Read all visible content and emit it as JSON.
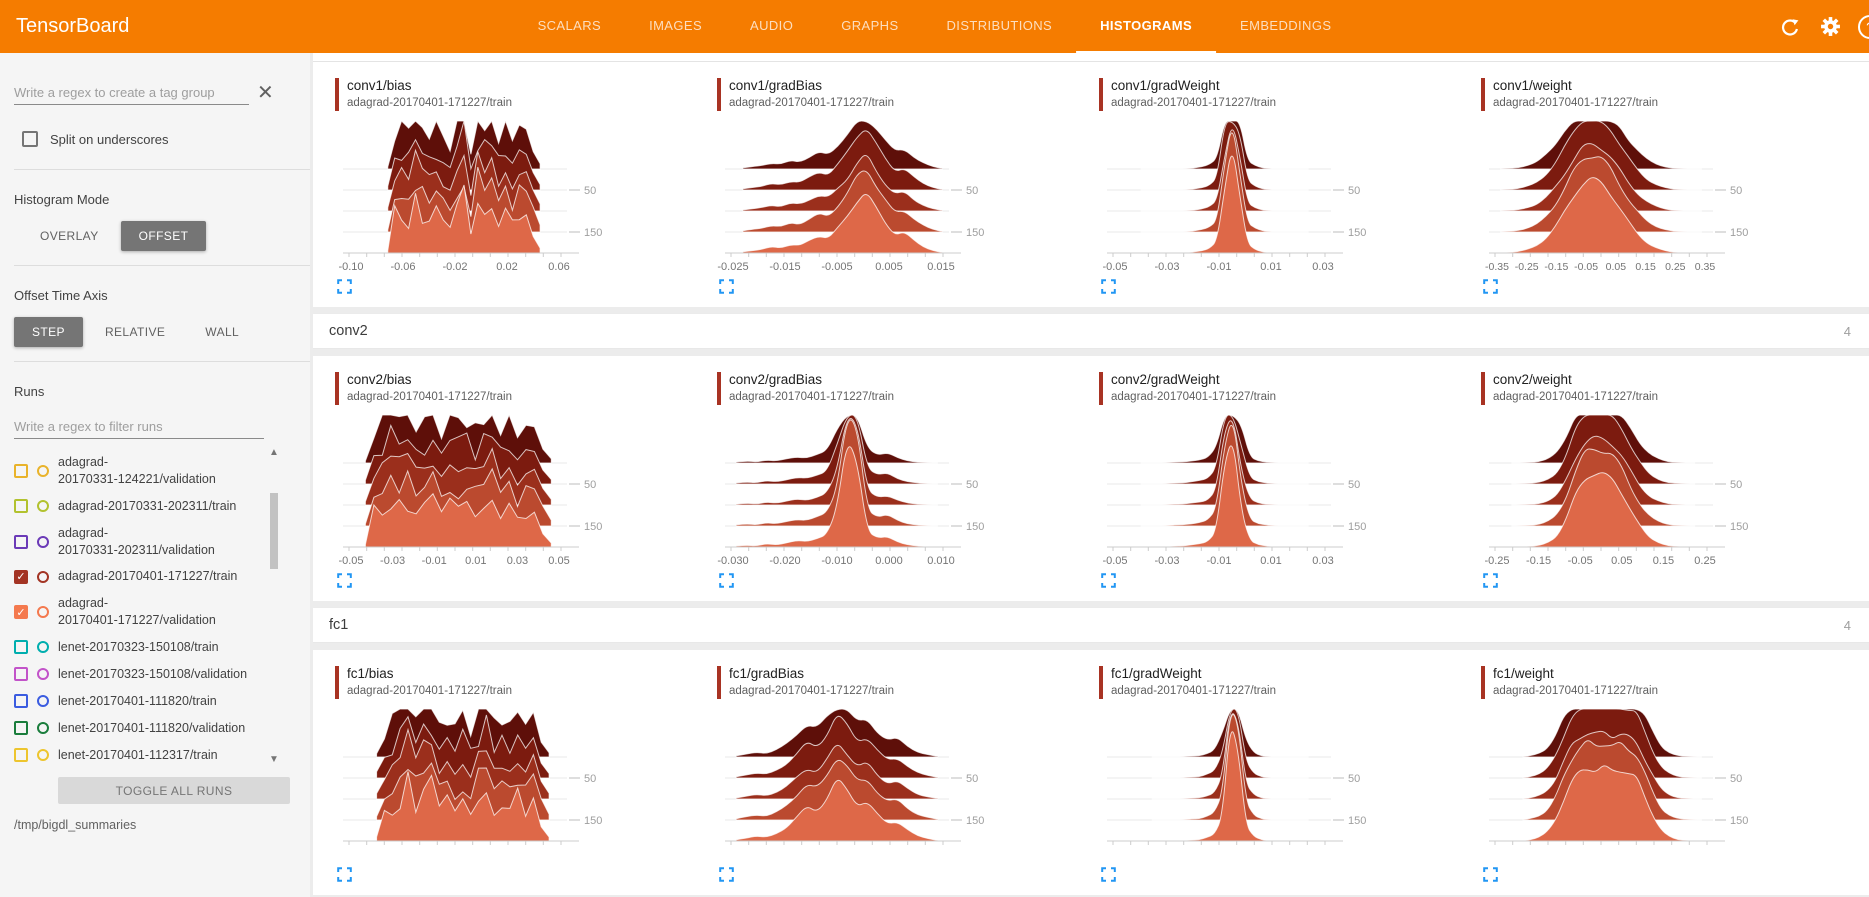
{
  "header": {
    "title": "TensorBoard",
    "tabs": [
      {
        "label": "SCALARS",
        "active": false
      },
      {
        "label": "IMAGES",
        "active": false
      },
      {
        "label": "AUDIO",
        "active": false
      },
      {
        "label": "GRAPHS",
        "active": false
      },
      {
        "label": "DISTRIBUTIONS",
        "active": false
      },
      {
        "label": "HISTOGRAMS",
        "active": true
      },
      {
        "label": "EMBEDDINGS",
        "active": false
      }
    ],
    "accent_color": "#f57c00",
    "icons": [
      "refresh-icon",
      "settings-icon",
      "help-icon"
    ]
  },
  "sidebar": {
    "tag_filter_placeholder": "Write a regex to create a tag group",
    "clear_icon": "x-icon",
    "split_label": "Split on underscores",
    "split_checked": false,
    "histogram_mode": {
      "label": "Histogram Mode",
      "options": [
        "OVERLAY",
        "OFFSET"
      ],
      "selected": "OFFSET"
    },
    "offset_time_axis": {
      "label": "Offset Time Axis",
      "options": [
        "STEP",
        "RELATIVE",
        "WALL"
      ],
      "selected": "STEP"
    },
    "runs": {
      "label": "Runs",
      "filter_placeholder": "Write a regex to filter runs",
      "items": [
        {
          "line1": "adagrad-",
          "line2": "20170331-124221/validation",
          "color": "#e9b32b",
          "checked": false
        },
        {
          "line1": "adagrad-20170331-202311/train",
          "line2": "",
          "color": "#b2c22f",
          "checked": false
        },
        {
          "line1": "adagrad-",
          "line2": "20170331-202311/validation",
          "color": "#6b3ab7",
          "checked": false
        },
        {
          "line1": "adagrad-20170401-171227/train",
          "line2": "",
          "color": "#a33424",
          "checked": true
        },
        {
          "line1": "adagrad-",
          "line2": "20170401-171227/validation",
          "color": "#f4794e",
          "checked": true
        },
        {
          "line1": "lenet-20170323-150108/train",
          "line2": "",
          "color": "#00aeae",
          "checked": false
        },
        {
          "line1": "lenet-20170323-150108/validation",
          "line2": "",
          "color": "#c253c9",
          "checked": false
        },
        {
          "line1": "lenet-20170401-111820/train",
          "line2": "",
          "color": "#3b5ce0",
          "checked": false
        },
        {
          "line1": "lenet-20170401-111820/validation",
          "line2": "",
          "color": "#1a7d3c",
          "checked": false
        },
        {
          "line1": "lenet-20170401-112317/train",
          "line2": "",
          "color": "#edc52e",
          "checked": false
        }
      ],
      "toggle_button": "TOGGLE ALL RUNS",
      "log_dir": "/tmp/bigdl_summaries"
    }
  },
  "main": {
    "groups": [
      {
        "name": "",
        "count": "",
        "show_header": false,
        "charts": [
          0,
          1,
          2,
          3
        ]
      },
      {
        "name": "conv2",
        "count": "4",
        "show_header": true,
        "charts": [
          4,
          5,
          6,
          7
        ]
      },
      {
        "name": "fc1",
        "count": "4",
        "show_header": true,
        "charts": [
          8,
          9,
          10,
          11
        ]
      }
    ]
  },
  "histogram_style": {
    "layer_colors": [
      "#5e0f09",
      "#7c1b0f",
      "#9b2f1c",
      "#bb4a2f",
      "#de6848"
    ],
    "layer_stroke": "rgba(255,255,255,0.75)",
    "grid_color": "#e9e9e9",
    "axis_color": "#cccccc",
    "xtick_label_color": "#757575",
    "ytick_label_color": "#9e9e9e",
    "accent_bar_color": "#a83323",
    "expand_icon_color": "#2196f3"
  },
  "chart_data": [
    {
      "type": "area",
      "group": "conv1",
      "title": "conv1/bias",
      "run": "adagrad-20170401-171227/train",
      "xticks": [
        "-0.10",
        "-0.06",
        "-0.02",
        "0.02",
        "0.06"
      ],
      "yticks": [
        "50",
        "150"
      ],
      "shape": "noisy",
      "span": [
        0.2,
        0.88
      ],
      "amp": 62,
      "profile": [
        0.05,
        0.62,
        0.7,
        0.55,
        0.78,
        0.62,
        0.48,
        0.72,
        0.55,
        0.4,
        0.78,
        1.0,
        0.3,
        0.85,
        0.68,
        0.9,
        0.58,
        0.8,
        0.5,
        0.7,
        0.55,
        0.35,
        0.1
      ]
    },
    {
      "type": "area",
      "group": "conv1",
      "title": "conv1/gradBias",
      "run": "adagrad-20170401-171227/train",
      "xticks": [
        "-0.025",
        "-0.015",
        "-0.005",
        "0.005",
        "0.015"
      ],
      "yticks": [
        "50",
        "150"
      ],
      "shape": "hills",
      "span": [
        0.08,
        0.97
      ],
      "amp": 64,
      "profile": [
        0.02,
        0.04,
        0.06,
        0.1,
        0.08,
        0.14,
        0.12,
        0.2,
        0.28,
        0.24,
        0.4,
        0.58,
        0.85,
        1.0,
        0.72,
        0.48,
        0.3,
        0.34,
        0.2,
        0.1,
        0.04,
        0.01
      ]
    },
    {
      "type": "area",
      "group": "conv1",
      "title": "conv1/gradWeight",
      "run": "adagrad-20170401-171227/train",
      "xticks": [
        "-0.05",
        "-0.03",
        "-0.01",
        "0.01",
        "0.03"
      ],
      "yticks": [
        "50",
        "150"
      ],
      "shape": "spike",
      "span": [
        0.15,
        0.9
      ],
      "amp": 118,
      "profile": [
        0,
        0,
        0,
        0,
        0,
        0,
        0,
        0.01,
        0.02,
        0.04,
        0.1,
        0.55,
        1.0,
        0.5,
        0.08,
        0.03,
        0.01,
        0,
        0,
        0,
        0,
        0,
        0
      ]
    },
    {
      "type": "area",
      "group": "conv1",
      "title": "conv1/weight",
      "run": "adagrad-20170401-171227/train",
      "xticks": [
        "-0.35",
        "-0.25",
        "-0.15",
        "-0.05",
        "0.05",
        "0.15",
        "0.25",
        "0.35"
      ],
      "yticks": [
        "50",
        "150"
      ],
      "shape": "bell",
      "span": [
        0.05,
        0.95
      ],
      "amp": 76,
      "profile": [
        0,
        0.01,
        0.02,
        0.05,
        0.1,
        0.2,
        0.35,
        0.55,
        0.78,
        0.95,
        1.0,
        0.96,
        0.82,
        0.62,
        0.42,
        0.26,
        0.14,
        0.07,
        0.03,
        0.01,
        0,
        0,
        0
      ]
    },
    {
      "type": "area",
      "group": "conv2",
      "title": "conv2/bias",
      "run": "adagrad-20170401-171227/train",
      "xticks": [
        "-0.05",
        "-0.03",
        "-0.01",
        "0.01",
        "0.03",
        "0.05"
      ],
      "yticks": [
        "50",
        "150"
      ],
      "shape": "noisy",
      "span": [
        0.1,
        0.93
      ],
      "amp": 62,
      "profile": [
        0.05,
        0.55,
        0.68,
        0.85,
        0.62,
        0.75,
        0.5,
        0.68,
        0.88,
        0.55,
        0.78,
        0.6,
        0.72,
        0.52,
        0.68,
        0.95,
        0.62,
        0.78,
        0.45,
        0.6,
        0.5,
        0.28,
        0.08
      ]
    },
    {
      "type": "area",
      "group": "conv2",
      "title": "conv2/gradBias",
      "run": "adagrad-20170401-171227/train",
      "xticks": [
        "-0.030",
        "-0.020",
        "-0.010",
        "0.000",
        "0.010"
      ],
      "yticks": [
        "50",
        "150"
      ],
      "shape": "spike",
      "span": [
        0.05,
        0.95
      ],
      "amp": 110,
      "profile": [
        0.01,
        0.02,
        0.01,
        0.03,
        0.02,
        0.04,
        0.06,
        0.05,
        0.08,
        0.12,
        0.35,
        1.0,
        0.85,
        0.15,
        0.08,
        0.1,
        0.05,
        0.02,
        0.01,
        0,
        0
      ]
    },
    {
      "type": "area",
      "group": "conv2",
      "title": "conv2/gradWeight",
      "run": "adagrad-20170401-171227/train",
      "xticks": [
        "-0.05",
        "-0.03",
        "-0.01",
        "0.01",
        "0.03"
      ],
      "yticks": [
        "50",
        "150"
      ],
      "shape": "spike",
      "span": [
        0.15,
        0.9
      ],
      "amp": 112,
      "profile": [
        0,
        0,
        0,
        0,
        0.01,
        0.01,
        0.02,
        0.03,
        0.05,
        0.15,
        0.75,
        1.0,
        0.35,
        0.06,
        0.02,
        0.01,
        0,
        0,
        0,
        0,
        0
      ]
    },
    {
      "type": "area",
      "group": "conv2",
      "title": "conv2/weight",
      "run": "adagrad-20170401-171227/train",
      "xticks": [
        "-0.25",
        "-0.15",
        "-0.05",
        "0.05",
        "0.15",
        "0.25"
      ],
      "yticks": [
        "50",
        "150"
      ],
      "shape": "bell",
      "span": [
        0.1,
        0.92
      ],
      "amp": 76,
      "profile": [
        0,
        0,
        0.01,
        0.02,
        0.06,
        0.15,
        0.38,
        0.72,
        0.95,
        1.0,
        0.98,
        0.92,
        0.75,
        0.5,
        0.28,
        0.13,
        0.06,
        0.02,
        0.01,
        0,
        0
      ]
    },
    {
      "type": "area",
      "group": "fc1",
      "title": "fc1/bias",
      "run": "adagrad-20170401-171227/train",
      "xticks": [],
      "yticks": [
        "50",
        "150"
      ],
      "shape": "noisy",
      "span": [
        0.15,
        0.92
      ],
      "amp": 62,
      "profile": [
        0.08,
        0.4,
        0.55,
        0.72,
        0.95,
        0.6,
        0.78,
        1.0,
        0.58,
        0.72,
        0.48,
        0.62,
        0.42,
        0.68,
        0.85,
        0.52,
        0.72,
        0.58,
        0.8,
        0.52,
        0.62,
        0.3,
        0.08
      ]
    },
    {
      "type": "area",
      "group": "fc1",
      "title": "fc1/gradBias",
      "run": "adagrad-20170401-171227/train",
      "xticks": [],
      "yticks": [
        "50",
        "150"
      ],
      "shape": "hills",
      "span": [
        0.05,
        0.95
      ],
      "amp": 64,
      "profile": [
        0.02,
        0.05,
        0.08,
        0.06,
        0.12,
        0.22,
        0.38,
        0.55,
        0.48,
        0.68,
        1.0,
        0.82,
        0.58,
        0.64,
        0.42,
        0.28,
        0.32,
        0.18,
        0.08,
        0.04,
        0.01
      ]
    },
    {
      "type": "area",
      "group": "fc1",
      "title": "fc1/gradWeight",
      "run": "adagrad-20170401-171227/train",
      "xticks": [],
      "yticks": [
        "50",
        "150"
      ],
      "shape": "spike",
      "span": [
        0.2,
        0.9
      ],
      "amp": 118,
      "profile": [
        0,
        0,
        0,
        0,
        0,
        0.01,
        0.01,
        0.03,
        0.06,
        0.22,
        1.0,
        0.8,
        0.15,
        0.04,
        0.01,
        0,
        0,
        0,
        0,
        0,
        0
      ]
    },
    {
      "type": "area",
      "group": "fc1",
      "title": "fc1/weight",
      "run": "adagrad-20170401-171227/train",
      "xticks": [],
      "yticks": [
        "50",
        "150"
      ],
      "shape": "bell",
      "span": [
        0.15,
        0.95
      ],
      "amp": 76,
      "profile": [
        0,
        0.02,
        0.05,
        0.12,
        0.28,
        0.55,
        0.8,
        0.93,
        1.0,
        0.96,
        1.0,
        0.94,
        0.98,
        0.92,
        0.85,
        0.6,
        0.35,
        0.15,
        0.06,
        0.02,
        0.01,
        0,
        0
      ]
    }
  ]
}
